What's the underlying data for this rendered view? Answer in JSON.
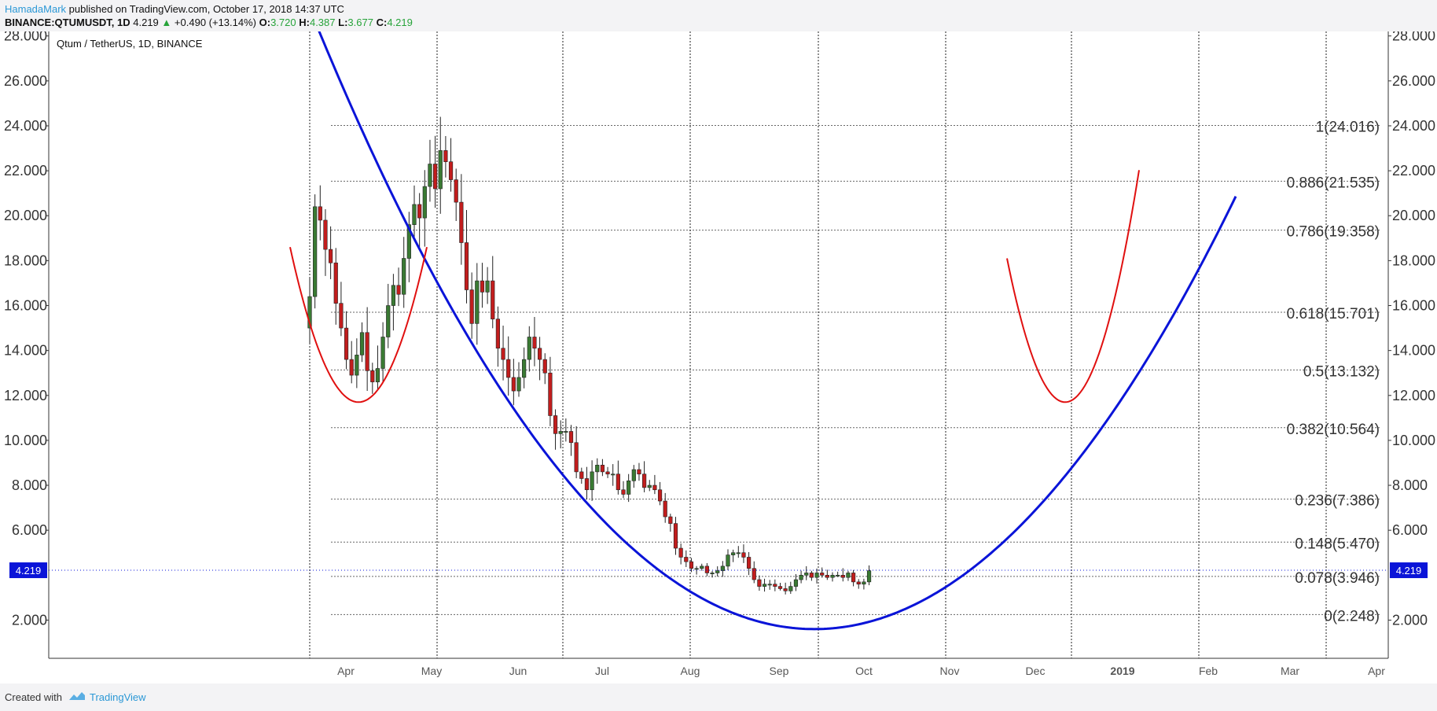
{
  "header": {
    "author": "HamadaMark",
    "published_text": "published on TradingView.com, October 17, 2018 14:37 UTC",
    "symbol": "BINANCE:QTUMUSDT, 1D",
    "price": "4.219",
    "change": "+0.490 (+13.14%)",
    "open_label": "O:",
    "open": "3.720",
    "high_label": "H:",
    "high": "4.387",
    "low_label": "L:",
    "low": "3.677",
    "close_label": "C:",
    "close": "4.219",
    "up_arrow": "▲"
  },
  "chart_data": {
    "type": "candlestick",
    "title": "Qtum / TetherUS, 1D, BINANCE",
    "x_axis_labels": [
      "Apr",
      "May",
      "Jun",
      "Jul",
      "Aug",
      "Sep",
      "Oct",
      "Nov",
      "Dec",
      "2019",
      "Feb",
      "Mar",
      "Apr"
    ],
    "y_ticks": [
      "28.000",
      "26.000",
      "24.000",
      "22.000",
      "20.000",
      "18.000",
      "16.000",
      "14.000",
      "12.000",
      "10.000",
      "8.000",
      "6.000",
      "2.000"
    ],
    "ylim": [
      0.3,
      28.2
    ],
    "last_price_label": "4.219",
    "last_price": 4.219,
    "fib_levels": [
      {
        "label": "1(24.016)",
        "value": 24.016
      },
      {
        "label": "0.886(21.535)",
        "value": 21.535
      },
      {
        "label": "0.786(19.358)",
        "value": 19.358
      },
      {
        "label": "0.618(15.701)",
        "value": 15.701
      },
      {
        "label": "0.5(13.132)",
        "value": 13.132
      },
      {
        "label": "0.382(10.564)",
        "value": 10.564
      },
      {
        "label": "0.236(7.386)",
        "value": 7.386
      },
      {
        "label": "0.148(5.470)",
        "value": 5.47
      },
      {
        "label": "0.078(3.946)",
        "value": 3.946
      },
      {
        "label": "0(2.248)",
        "value": 2.248
      }
    ],
    "close_series": [
      16.4,
      20.4,
      19.8,
      18.5,
      17.9,
      16.1,
      15.0,
      13.6,
      12.9,
      13.8,
      14.8,
      13.1,
      12.6,
      13.2,
      14.6,
      16.0,
      16.9,
      16.5,
      18.1,
      19.6,
      20.5,
      19.9,
      21.3,
      22.3,
      21.2,
      22.9,
      22.4,
      21.6,
      20.6,
      18.8,
      16.7,
      15.2,
      17.1,
      16.6,
      17.1,
      15.4,
      14.1,
      13.6,
      12.8,
      12.2,
      12.8,
      13.6,
      14.6,
      14.1,
      13.6,
      13.0,
      11.1,
      10.3,
      10.4,
      10.4,
      9.9,
      8.6,
      8.3,
      7.8,
      8.6,
      8.9,
      8.6,
      8.5,
      8.5,
      7.8,
      7.6,
      8.2,
      8.7,
      8.5,
      7.9,
      8.0,
      7.8,
      7.3,
      6.6,
      6.3,
      5.2,
      4.8,
      4.6,
      4.3,
      4.3,
      4.4,
      4.1,
      4.1,
      4.2,
      4.4,
      4.9,
      5.0,
      5.0,
      4.8,
      4.3,
      3.8,
      3.5,
      3.6,
      3.6,
      3.5,
      3.4,
      3.3,
      3.5,
      3.8,
      4.0,
      4.1,
      3.9,
      4.1,
      4.0,
      3.9,
      4.0,
      4.0,
      3.9,
      4.1,
      3.7,
      3.6,
      3.7,
      4.2
    ]
  }
}
